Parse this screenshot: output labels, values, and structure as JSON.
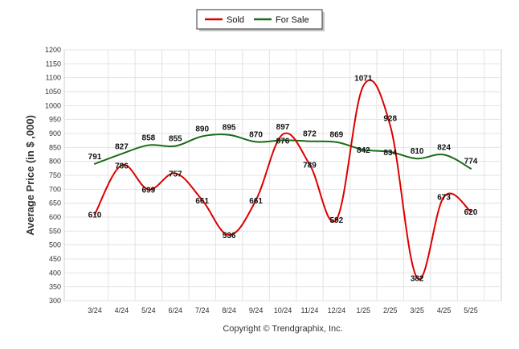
{
  "chart_data": {
    "type": "line",
    "title": "",
    "xlabel": "",
    "ylabel": "Average Price (in $ ,000)",
    "categories": [
      "3/24",
      "4/24",
      "5/24",
      "6/24",
      "7/24",
      "8/24",
      "9/24",
      "10/24",
      "11/24",
      "12/24",
      "1/25",
      "2/25",
      "3/25",
      "4/25",
      "5/25"
    ],
    "series": [
      {
        "name": "Sold",
        "color": "#dd0000",
        "values": [
          610,
          786,
          699,
          757,
          661,
          536,
          661,
          897,
          789,
          592,
          1071,
          928,
          382,
          673,
          620
        ]
      },
      {
        "name": "For Sale",
        "color": "#1a6b1a",
        "values": [
          791,
          827,
          858,
          855,
          890,
          895,
          870,
          876,
          872,
          869,
          842,
          834,
          810,
          824,
          774
        ]
      }
    ],
    "ylim": [
      300,
      1200
    ],
    "yticks": [
      300,
      350,
      400,
      450,
      500,
      550,
      600,
      650,
      700,
      750,
      800,
      850,
      900,
      950,
      1000,
      1050,
      1100,
      1150,
      1200
    ],
    "grid": true,
    "legend_position": "top-center"
  },
  "footer": {
    "copyright": "Copyright © Trendgraphix, Inc."
  }
}
